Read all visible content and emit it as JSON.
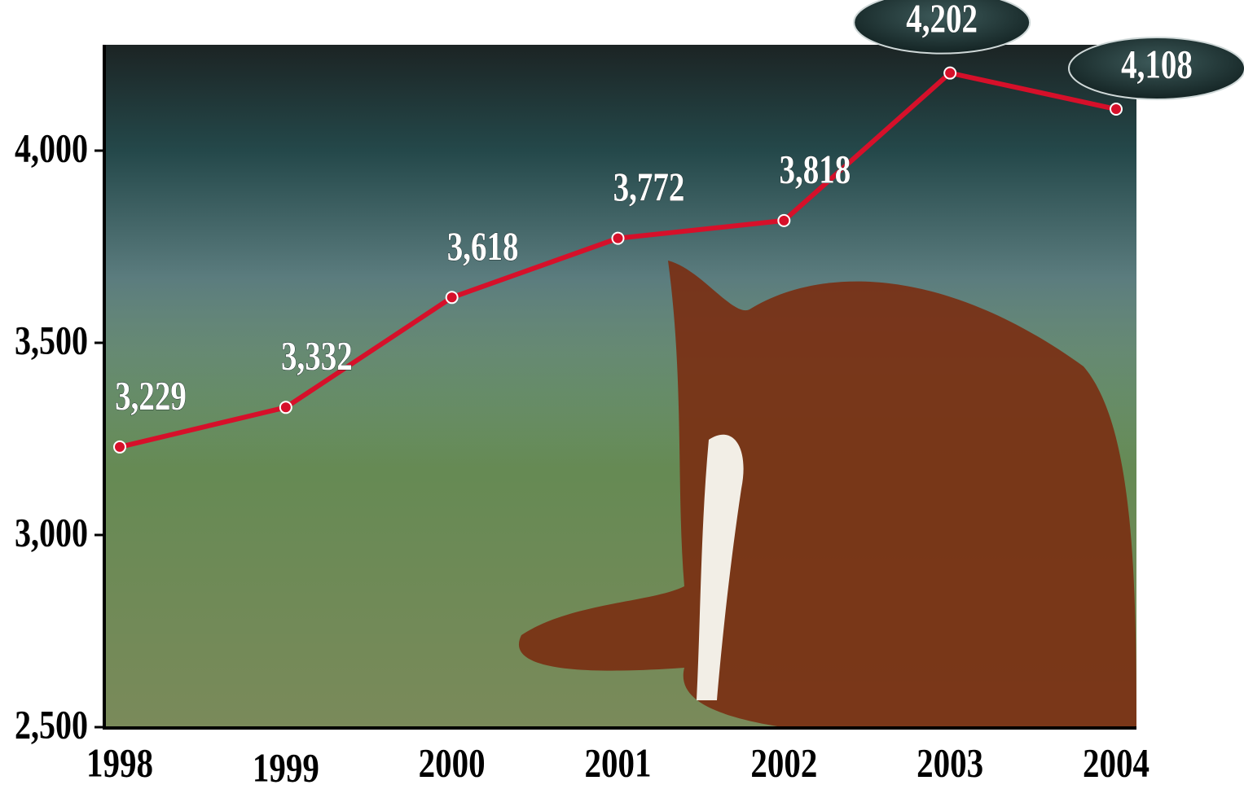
{
  "chart_data": {
    "type": "line",
    "categories": [
      "1998",
      "1999",
      "2000",
      "2001",
      "2002",
      "2003",
      "2004"
    ],
    "series": [
      {
        "color": "#d6102a",
        "values": [
          3229,
          3332,
          3618,
          3772,
          3818,
          4202,
          4108
        ],
        "value_labels": [
          "3,229",
          "3,332",
          "3,618",
          "3,772",
          "3,818",
          "4,202",
          "4,108"
        ]
      }
    ],
    "ylim": [
      2500,
      4300
    ],
    "yticks": [
      {
        "value": 2500,
        "label": "2,500"
      },
      {
        "value": 3000,
        "label": "3,000"
      },
      {
        "value": 3500,
        "label": "3,500"
      },
      {
        "value": 4000,
        "label": "4,000"
      }
    ]
  }
}
